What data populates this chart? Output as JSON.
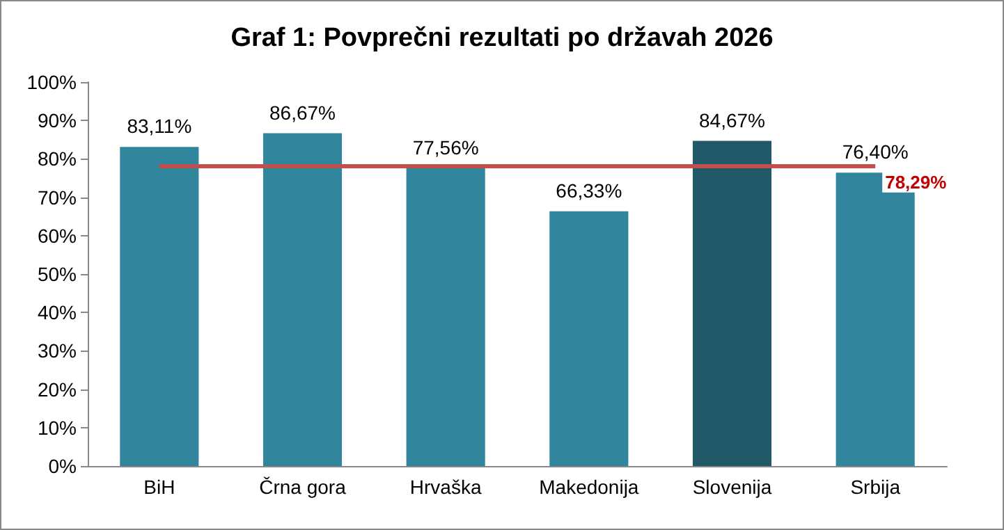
{
  "chart_data": {
    "type": "bar",
    "title": "Graf 1: Povprečni rezultati po državah 2026",
    "categories": [
      "BiH",
      "Črna gora",
      "Hrvaška",
      "Makedonija",
      "Slovenija",
      "Srbija"
    ],
    "values": [
      83.11,
      86.67,
      77.56,
      66.33,
      84.67,
      76.4
    ],
    "colors": [
      "#31859c",
      "#31859c",
      "#31859c",
      "#31859c",
      "#215968",
      "#31859c"
    ],
    "value_labels": [
      "83,11%",
      "86,67%",
      "77,56%",
      "66,33%",
      "84,67%",
      "76,40%"
    ],
    "ylim": [
      0,
      100
    ],
    "yticks": [
      {
        "value": 0,
        "label": "0%"
      },
      {
        "value": 10,
        "label": "10%"
      },
      {
        "value": 20,
        "label": "20%"
      },
      {
        "value": 30,
        "label": "30%"
      },
      {
        "value": 40,
        "label": "40%"
      },
      {
        "value": 50,
        "label": "50%"
      },
      {
        "value": 60,
        "label": "60%"
      },
      {
        "value": 70,
        "label": "70%"
      },
      {
        "value": 80,
        "label": "80%"
      },
      {
        "value": 90,
        "label": "90%"
      },
      {
        "value": 100,
        "label": "100%"
      }
    ],
    "ref_lines": [
      {
        "axis": "y",
        "value": 78.29,
        "label": "78,29%",
        "color": "#c0504d"
      }
    ],
    "grid": false
  }
}
